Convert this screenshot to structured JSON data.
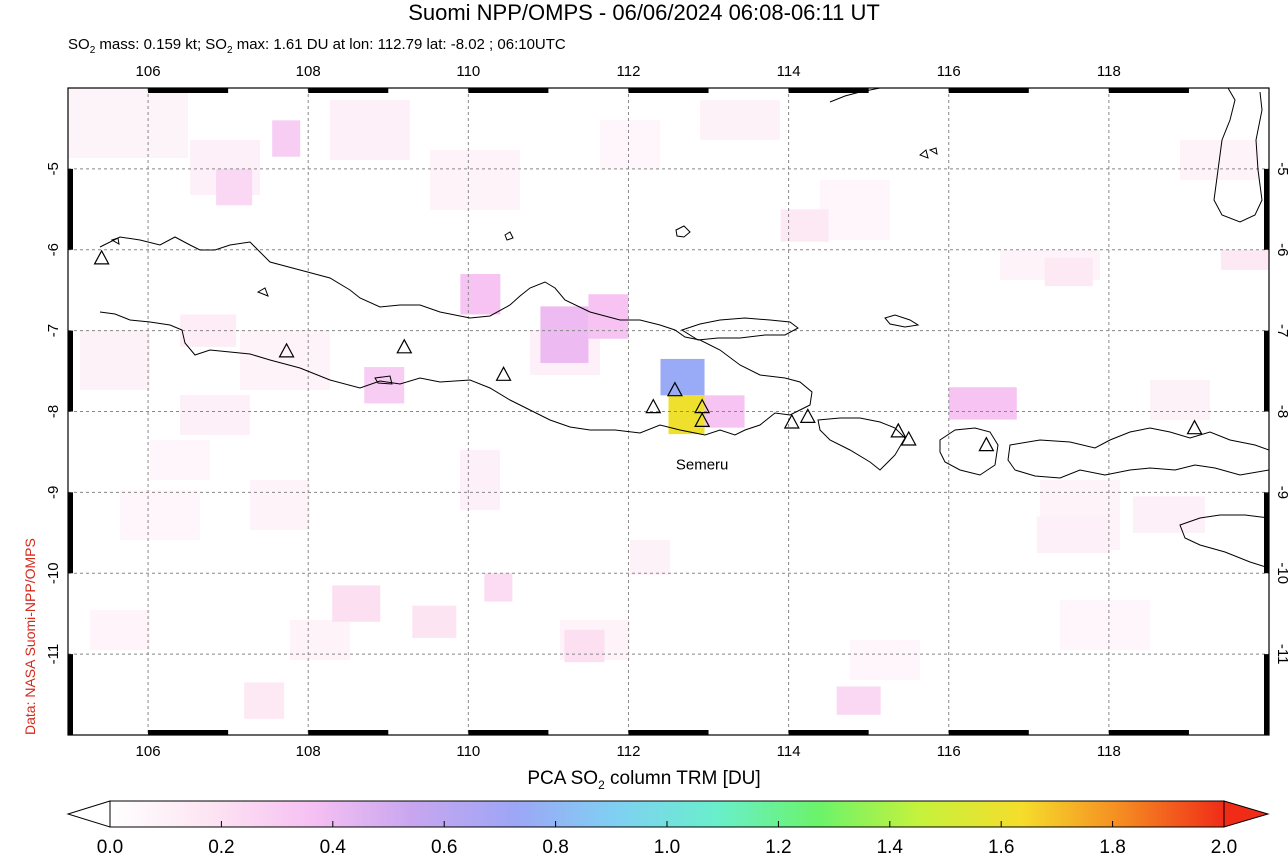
{
  "header": {
    "title": "Suomi NPP/OMPS - 06/06/2024 06:08-06:11 UT",
    "subtitle_prefix": "SO",
    "subtitle_mass": " mass: 0.159 kt; SO",
    "subtitle_rest": " max: 1.61 DU at lon: 112.79 lat: -8.02 ; 06:10UTC",
    "subscript": "2"
  },
  "credit": "Data: NASA Suomi-NPP/OMPS",
  "map": {
    "lon_range": [
      105,
      120
    ],
    "lat_range": [
      -12,
      -4
    ],
    "lon_ticks": [
      "106",
      "108",
      "110",
      "112",
      "114",
      "116",
      "118"
    ],
    "lat_ticks": [
      "-5",
      "-6",
      "-7",
      "-8",
      "-9",
      "-10",
      "-11"
    ],
    "volcano_label": "Semeru",
    "volcanoes": [
      {
        "lon": 105.42,
        "lat": -6.1
      },
      {
        "lon": 107.73,
        "lat": -7.25
      },
      {
        "lon": 109.2,
        "lat": -7.2
      },
      {
        "lon": 110.44,
        "lat": -7.54
      },
      {
        "lon": 112.31,
        "lat": -7.94
      },
      {
        "lon": 112.58,
        "lat": -7.73
      },
      {
        "lon": 112.92,
        "lat": -7.94
      },
      {
        "lon": 112.92,
        "lat": -8.11
      },
      {
        "lon": 114.04,
        "lat": -8.13
      },
      {
        "lon": 114.24,
        "lat": -8.06
      },
      {
        "lon": 115.37,
        "lat": -8.24
      },
      {
        "lon": 115.5,
        "lat": -8.34
      },
      {
        "lon": 116.47,
        "lat": -8.41
      },
      {
        "lon": 119.07,
        "lat": -8.2
      }
    ],
    "so2_pixels": [
      {
        "lon0": 112.4,
        "lat0": -7.35,
        "lon1": 112.95,
        "lat1": -7.8,
        "value": 0.75
      },
      {
        "lon0": 112.5,
        "lat0": -7.8,
        "lon1": 112.95,
        "lat1": -8.28,
        "value": 1.61
      },
      {
        "lon0": 112.95,
        "lat0": -7.8,
        "lon1": 113.45,
        "lat1": -8.2,
        "value": 0.35
      },
      {
        "lon0": 110.9,
        "lat0": -6.7,
        "lon1": 111.5,
        "lat1": -7.4,
        "value": 0.4
      },
      {
        "lon0": 111.5,
        "lat0": -6.55,
        "lon1": 112.0,
        "lat1": -7.1,
        "value": 0.35
      },
      {
        "lon0": 109.9,
        "lat0": -6.3,
        "lon1": 110.4,
        "lat1": -6.8,
        "value": 0.35
      },
      {
        "lon0": 116.0,
        "lat0": -7.7,
        "lon1": 116.85,
        "lat1": -8.1,
        "value": 0.35
      },
      {
        "lon0": 108.7,
        "lat0": -7.45,
        "lon1": 109.2,
        "lat1": -7.9,
        "value": 0.3
      },
      {
        "lon0": 107.55,
        "lat0": -4.4,
        "lon1": 107.9,
        "lat1": -4.85,
        "value": 0.3
      },
      {
        "lon0": 106.85,
        "lat0": -5.0,
        "lon1": 107.3,
        "lat1": -5.45,
        "value": 0.25
      },
      {
        "lon0": 114.6,
        "lat0": -11.4,
        "lon1": 115.15,
        "lat1": -11.75,
        "value": 0.25
      },
      {
        "lon0": 110.2,
        "lat0": -10.0,
        "lon1": 110.55,
        "lat1": -10.35,
        "value": 0.22
      },
      {
        "lon0": 111.2,
        "lat0": -10.7,
        "lon1": 111.7,
        "lat1": -11.1,
        "value": 0.2
      },
      {
        "lon0": 108.3,
        "lat0": -10.15,
        "lon1": 108.9,
        "lat1": -10.6,
        "value": 0.2
      },
      {
        "lon0": 109.3,
        "lat0": -10.4,
        "lon1": 109.85,
        "lat1": -10.8,
        "value": 0.18
      },
      {
        "lon0": 113.9,
        "lat0": -5.5,
        "lon1": 114.5,
        "lat1": -5.9,
        "value": 0.15
      },
      {
        "lon0": 117.2,
        "lat0": -6.1,
        "lon1": 117.8,
        "lat1": -6.45,
        "value": 0.15
      },
      {
        "lon0": 119.4,
        "lat0": -6.0,
        "lon1": 120.0,
        "lat1": -6.25,
        "value": 0.15
      },
      {
        "lon0": 106.4,
        "lat0": -6.8,
        "lon1": 107.1,
        "lat1": -7.2,
        "value": 0.12
      },
      {
        "lon0": 107.2,
        "lat0": -11.35,
        "lon1": 107.7,
        "lat1": -11.8,
        "value": 0.15
      },
      {
        "lon0": 117.1,
        "lat0": -9.3,
        "lon1": 118.0,
        "lat1": -9.75,
        "value": 0.1
      },
      {
        "lon0": 118.3,
        "lat0": -9.05,
        "lon1": 119.2,
        "lat1": -9.5,
        "value": 0.1
      }
    ]
  },
  "colorbar": {
    "label_prefix": "PCA SO",
    "label_suffix": " column TRM [DU]",
    "subscript": "2",
    "ticks": [
      "0.0",
      "0.2",
      "0.4",
      "0.6",
      "0.8",
      "1.0",
      "1.2",
      "1.4",
      "1.6",
      "1.8",
      "2.0"
    ],
    "stops": [
      "#ffffff",
      "#fde4f2",
      "#f6c0f3",
      "#c7a6ef",
      "#9da6f6",
      "#7fd0f3",
      "#69efcb",
      "#6bf36a",
      "#c6f23c",
      "#f5dd2b",
      "#f58a22",
      "#f02c18"
    ]
  }
}
